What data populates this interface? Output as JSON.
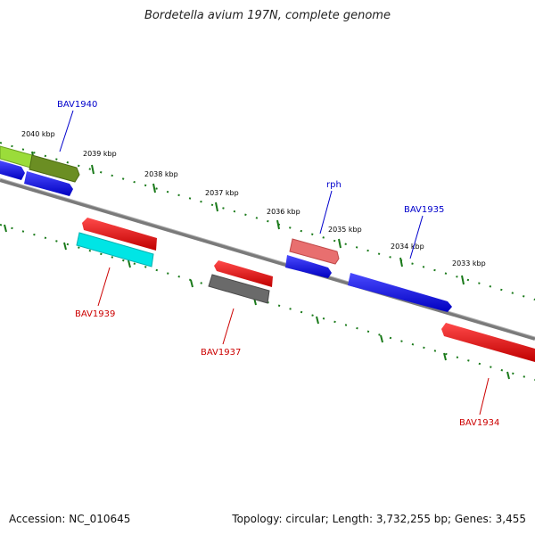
{
  "title": "Bordetella avium 197N, complete genome",
  "footer": {
    "accession": "Accession: NC_010645",
    "summary": "Topology: circular; Length: 3,732,255 bp; Genes: 3,455"
  },
  "scale_labels": [
    "2040 kbp",
    "2039 kbp",
    "2038 kbp",
    "2037 kbp",
    "2036 kbp",
    "2035 kbp",
    "2034 kbp",
    "2033 kbp"
  ],
  "genes": {
    "bav1940": "BAV1940",
    "bav1939": "BAV1939",
    "bav1937": "BAV1937",
    "rph": "rph",
    "bav1935": "BAV1935",
    "bav1934": "BAV1934"
  },
  "colors": {
    "forward_label": "#0000cc",
    "reverse_label": "#cc0000",
    "tick": "#1a7a1a",
    "backbone": "#808080"
  }
}
